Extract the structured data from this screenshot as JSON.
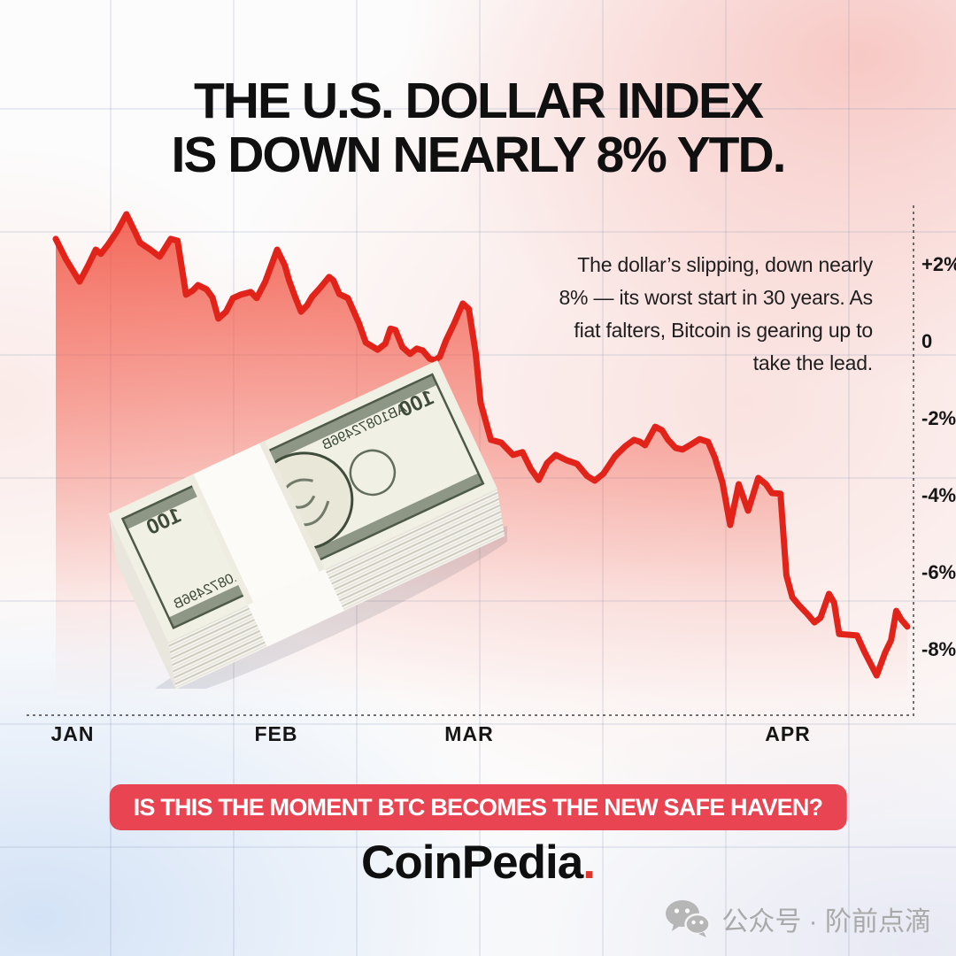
{
  "title": {
    "lines": [
      "THE U.S. DOLLAR INDEX",
      "IS DOWN NEARLY 8% YTD."
    ]
  },
  "annotation": {
    "lines": [
      "The dollar’s slipping, down nearly",
      "8% — its worst start in 30 years. As",
      "fiat falters, Bitcoin is gearing up to",
      "take the lead."
    ]
  },
  "banner": {
    "label": "IS THIS THE MOMENT BTC BECOMES THE NEW SAFE HAVEN?",
    "bg_color": "#e94452",
    "text_color": "#ffffff"
  },
  "brand": {
    "name": "CoinPedia",
    "dot": ".",
    "dot_color": "#e0352c"
  },
  "footer": {
    "platform_label": "公众号 · 阶前点滴",
    "icon": "wechat-icon",
    "color": "#a9a9a9"
  },
  "money_stack": {
    "description": "banded stack of mirrored US $100 bills",
    "denomination": "100",
    "serial": "AB10872496B"
  },
  "chart_data": {
    "type": "area",
    "series_name": "U.S. Dollar Index YTD change (%)",
    "x_labels": [
      {
        "label": "JAN",
        "pos": 2.0
      },
      {
        "label": "FEB",
        "pos": 25.9
      },
      {
        "label": "MAR",
        "pos": 48.5
      },
      {
        "label": "APR",
        "pos": 86.0
      }
    ],
    "y_ticks": [
      {
        "label": "+2%",
        "value": 2
      },
      {
        "label": "0",
        "value": 0
      },
      {
        "label": "-2%",
        "value": -2
      },
      {
        "label": "-4%",
        "value": -4
      },
      {
        "label": "-6%",
        "value": -6
      },
      {
        "label": "-8%",
        "value": -8
      }
    ],
    "ylim": [
      -9.5,
      3.5
    ],
    "grid": "faint background squares",
    "line_color": "#e2231a",
    "fill_color": "#f2503f",
    "axis_style": "dashed right axis and bottom baseline",
    "points": [
      [
        0.0,
        2.67
      ],
      [
        1.2,
        2.14
      ],
      [
        2.8,
        1.56
      ],
      [
        3.8,
        1.98
      ],
      [
        4.7,
        2.39
      ],
      [
        5.3,
        2.28
      ],
      [
        6.1,
        2.51
      ],
      [
        7.2,
        2.87
      ],
      [
        8.3,
        3.31
      ],
      [
        9.3,
        2.85
      ],
      [
        9.9,
        2.57
      ],
      [
        11.1,
        2.39
      ],
      [
        12.2,
        2.21
      ],
      [
        13.5,
        2.67
      ],
      [
        14.3,
        2.62
      ],
      [
        15.3,
        1.22
      ],
      [
        16.1,
        1.33
      ],
      [
        16.7,
        1.47
      ],
      [
        17.7,
        1.36
      ],
      [
        18.4,
        1.15
      ],
      [
        19.1,
        0.6
      ],
      [
        20.0,
        0.78
      ],
      [
        20.8,
        1.13
      ],
      [
        21.7,
        1.22
      ],
      [
        22.9,
        1.29
      ],
      [
        23.6,
        1.13
      ],
      [
        24.6,
        1.56
      ],
      [
        26.0,
        2.39
      ],
      [
        26.9,
        1.98
      ],
      [
        27.4,
        1.59
      ],
      [
        28.1,
        1.17
      ],
      [
        28.8,
        0.78
      ],
      [
        29.5,
        0.94
      ],
      [
        30.1,
        1.17
      ],
      [
        30.9,
        1.36
      ],
      [
        32.1,
        1.68
      ],
      [
        32.6,
        1.59
      ],
      [
        33.3,
        1.24
      ],
      [
        34.3,
        1.13
      ],
      [
        35.6,
        0.48
      ],
      [
        36.4,
        -0.02
      ],
      [
        37.8,
        -0.21
      ],
      [
        38.7,
        -0.05
      ],
      [
        39.3,
        0.34
      ],
      [
        39.9,
        0.3
      ],
      [
        40.7,
        -0.14
      ],
      [
        41.6,
        -0.32
      ],
      [
        42.4,
        -0.18
      ],
      [
        43.1,
        -0.23
      ],
      [
        43.9,
        -0.44
      ],
      [
        44.5,
        -0.48
      ],
      [
        45.1,
        -0.39
      ],
      [
        45.8,
        0.02
      ],
      [
        46.8,
        0.48
      ],
      [
        47.8,
        0.99
      ],
      [
        48.5,
        0.85
      ],
      [
        49.3,
        -0.28
      ],
      [
        49.9,
        -1.59
      ],
      [
        51.1,
        -2.55
      ],
      [
        52.3,
        -2.62
      ],
      [
        53.7,
        -2.94
      ],
      [
        54.8,
        -2.87
      ],
      [
        55.8,
        -3.31
      ],
      [
        56.7,
        -3.59
      ],
      [
        57.7,
        -3.15
      ],
      [
        58.7,
        -2.94
      ],
      [
        60.0,
        -3.08
      ],
      [
        61.2,
        -3.17
      ],
      [
        62.4,
        -3.49
      ],
      [
        63.3,
        -3.61
      ],
      [
        64.3,
        -3.43
      ],
      [
        65.7,
        -2.97
      ],
      [
        66.9,
        -2.71
      ],
      [
        67.9,
        -2.55
      ],
      [
        68.6,
        -2.6
      ],
      [
        69.2,
        -2.69
      ],
      [
        70.4,
        -2.21
      ],
      [
        71.2,
        -2.3
      ],
      [
        71.9,
        -2.55
      ],
      [
        72.8,
        -2.76
      ],
      [
        73.6,
        -2.8
      ],
      [
        74.6,
        -2.67
      ],
      [
        75.6,
        -2.53
      ],
      [
        76.6,
        -2.6
      ],
      [
        77.4,
        -3.01
      ],
      [
        78.3,
        -3.66
      ],
      [
        79.2,
        -4.76
      ],
      [
        80.2,
        -3.7
      ],
      [
        81.3,
        -4.39
      ],
      [
        82.5,
        -3.54
      ],
      [
        83.4,
        -3.7
      ],
      [
        84.1,
        -3.93
      ],
      [
        85.1,
        -3.95
      ],
      [
        85.8,
        -6.07
      ],
      [
        86.5,
        -6.64
      ],
      [
        87.3,
        -6.85
      ],
      [
        88.3,
        -7.08
      ],
      [
        89.1,
        -7.29
      ],
      [
        89.8,
        -7.17
      ],
      [
        90.8,
        -6.55
      ],
      [
        91.4,
        -6.78
      ],
      [
        92.0,
        -7.59
      ],
      [
        93.0,
        -7.61
      ],
      [
        94.1,
        -7.63
      ],
      [
        95.0,
        -8.07
      ],
      [
        96.4,
        -8.67
      ],
      [
        97.4,
        -8.07
      ],
      [
        98.1,
        -7.75
      ],
      [
        98.7,
        -6.99
      ],
      [
        99.3,
        -7.22
      ],
      [
        100.0,
        -7.4
      ]
    ]
  }
}
